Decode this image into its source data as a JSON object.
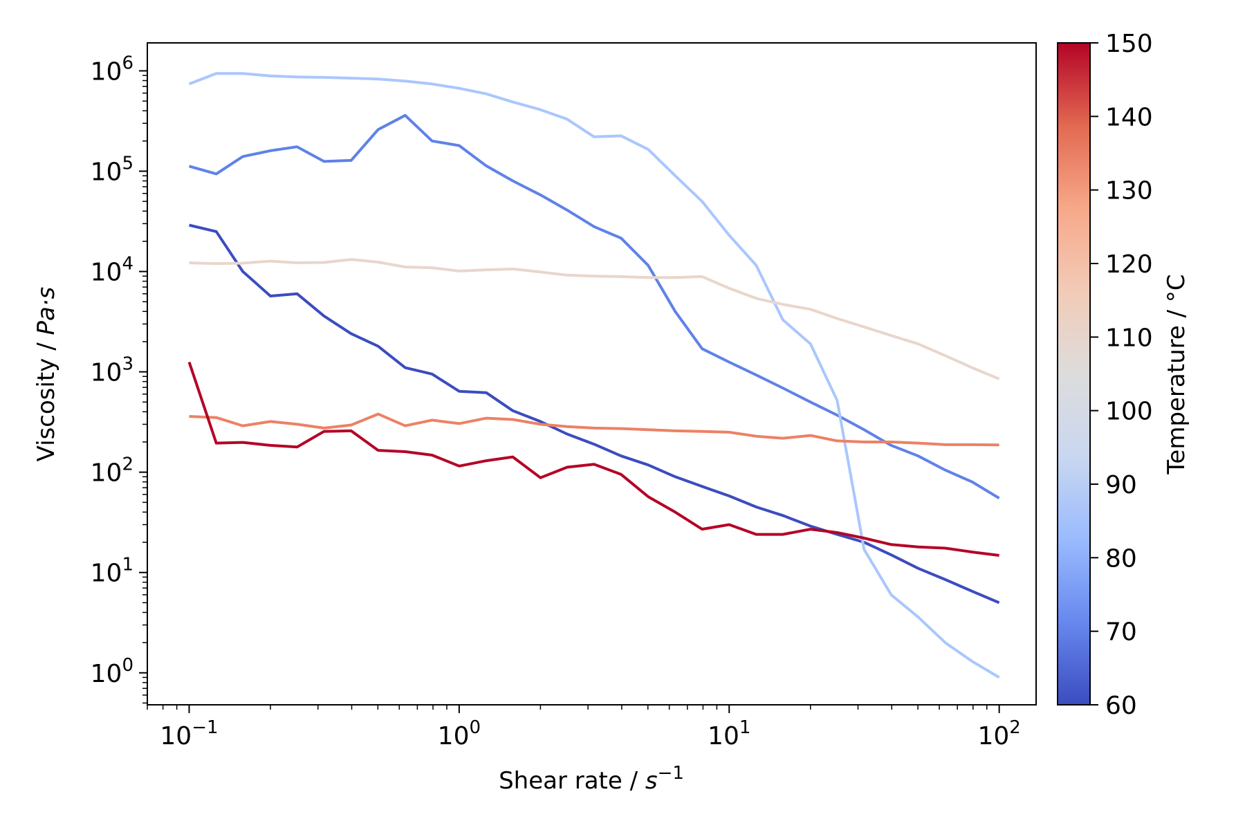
{
  "chart_data": {
    "type": "line",
    "xscale": "log",
    "yscale": "log",
    "xlim": [
      0.07,
      137
    ],
    "ylim": [
      0.48,
      1900000
    ],
    "xlabel": {
      "prefix": "Shear rate / ",
      "unit": "s",
      "unit_exp": "−1"
    },
    "ylabel": {
      "prefix": "Viscosity / ",
      "unit": "Pa·s"
    },
    "x_ticks": [
      {
        "base": "10",
        "exp": "−1"
      },
      {
        "base": "10",
        "exp": "0"
      },
      {
        "base": "10",
        "exp": "1"
      },
      {
        "base": "10",
        "exp": "2"
      }
    ],
    "y_ticks": [
      {
        "base": "10",
        "exp": "0"
      },
      {
        "base": "10",
        "exp": "1"
      },
      {
        "base": "10",
        "exp": "2"
      },
      {
        "base": "10",
        "exp": "3"
      },
      {
        "base": "10",
        "exp": "4"
      },
      {
        "base": "10",
        "exp": "5"
      },
      {
        "base": "10",
        "exp": "6"
      }
    ],
    "grid": false,
    "legend": "none",
    "colorbar": {
      "label": "Temperature / °C",
      "range": [
        60,
        150
      ],
      "ticks": [
        "60",
        "70",
        "80",
        "90",
        "100",
        "110",
        "120",
        "130",
        "140",
        "150"
      ],
      "colormap": "coolwarm",
      "stops": [
        "#3b4cc0",
        "#6788ee",
        "#9abbff",
        "#c9d7f0",
        "#dddcdc",
        "#f2cbb7",
        "#f7a889",
        "#e26952",
        "#b40426"
      ]
    },
    "x": [
      0.1,
      0.126,
      0.158,
      0.2,
      0.251,
      0.316,
      0.398,
      0.501,
      0.631,
      0.794,
      1.0,
      1.26,
      1.58,
      2.0,
      2.51,
      3.16,
      3.98,
      5.01,
      6.31,
      7.94,
      10.0,
      12.6,
      15.8,
      20.0,
      25.1,
      31.6,
      39.8,
      50.1,
      63.1,
      79.4,
      100.0
    ],
    "series": [
      {
        "temperature": 60,
        "color": "#3b4cc0",
        "values": [
          29000,
          25000,
          10000,
          5700,
          6000,
          3600,
          2400,
          1800,
          1100,
          950,
          640,
          620,
          410,
          320,
          240,
          190,
          145,
          118,
          90,
          72,
          58,
          45,
          37,
          29,
          24,
          20,
          15,
          11,
          8.5,
          6.5,
          5
        ]
      },
      {
        "temperature": 75,
        "color": "#5f82e8",
        "values": [
          112000,
          94000,
          140000,
          160000,
          175000,
          125000,
          128000,
          260000,
          360000,
          200000,
          180000,
          113000,
          80000,
          58000,
          41000,
          28000,
          21500,
          11500,
          4000,
          1700,
          1250,
          930,
          690,
          500,
          370,
          265,
          185,
          145,
          105,
          80,
          55
        ]
      },
      {
        "temperature": 90,
        "color": "#aac7fd",
        "values": [
          740000,
          940000,
          940000,
          890000,
          870000,
          860000,
          845000,
          830000,
          790000,
          740000,
          670000,
          590000,
          490000,
          410000,
          330000,
          220000,
          225000,
          165000,
          90000,
          50000,
          23000,
          11500,
          3300,
          1900,
          520,
          17,
          6,
          3.6,
          2,
          1.3,
          0.9
        ]
      },
      {
        "temperature": 110,
        "color": "#e8d6cc",
        "values": [
          12200,
          12000,
          12100,
          12700,
          12200,
          12300,
          13200,
          12400,
          11100,
          10900,
          10100,
          10400,
          10600,
          9900,
          9200,
          9000,
          8900,
          8700,
          8700,
          8900,
          6800,
          5400,
          4700,
          4200,
          3400,
          2800,
          2300,
          1900,
          1450,
          1100,
          850
        ]
      },
      {
        "temperature": 135,
        "color": "#ec8165",
        "values": [
          360,
          350,
          290,
          320,
          300,
          275,
          295,
          380,
          290,
          330,
          305,
          345,
          335,
          300,
          285,
          275,
          272,
          265,
          258,
          255,
          250,
          228,
          218,
          232,
          205,
          200,
          200,
          195,
          188,
          188,
          187
        ]
      },
      {
        "temperature": 150,
        "color": "#b40426",
        "values": [
          1250,
          195,
          198,
          185,
          178,
          255,
          258,
          165,
          160,
          148,
          115,
          130,
          142,
          88,
          112,
          120,
          95,
          57,
          40,
          27,
          30,
          24,
          24,
          27,
          25,
          22,
          19,
          18,
          17.5,
          16,
          14.8
        ]
      }
    ]
  }
}
